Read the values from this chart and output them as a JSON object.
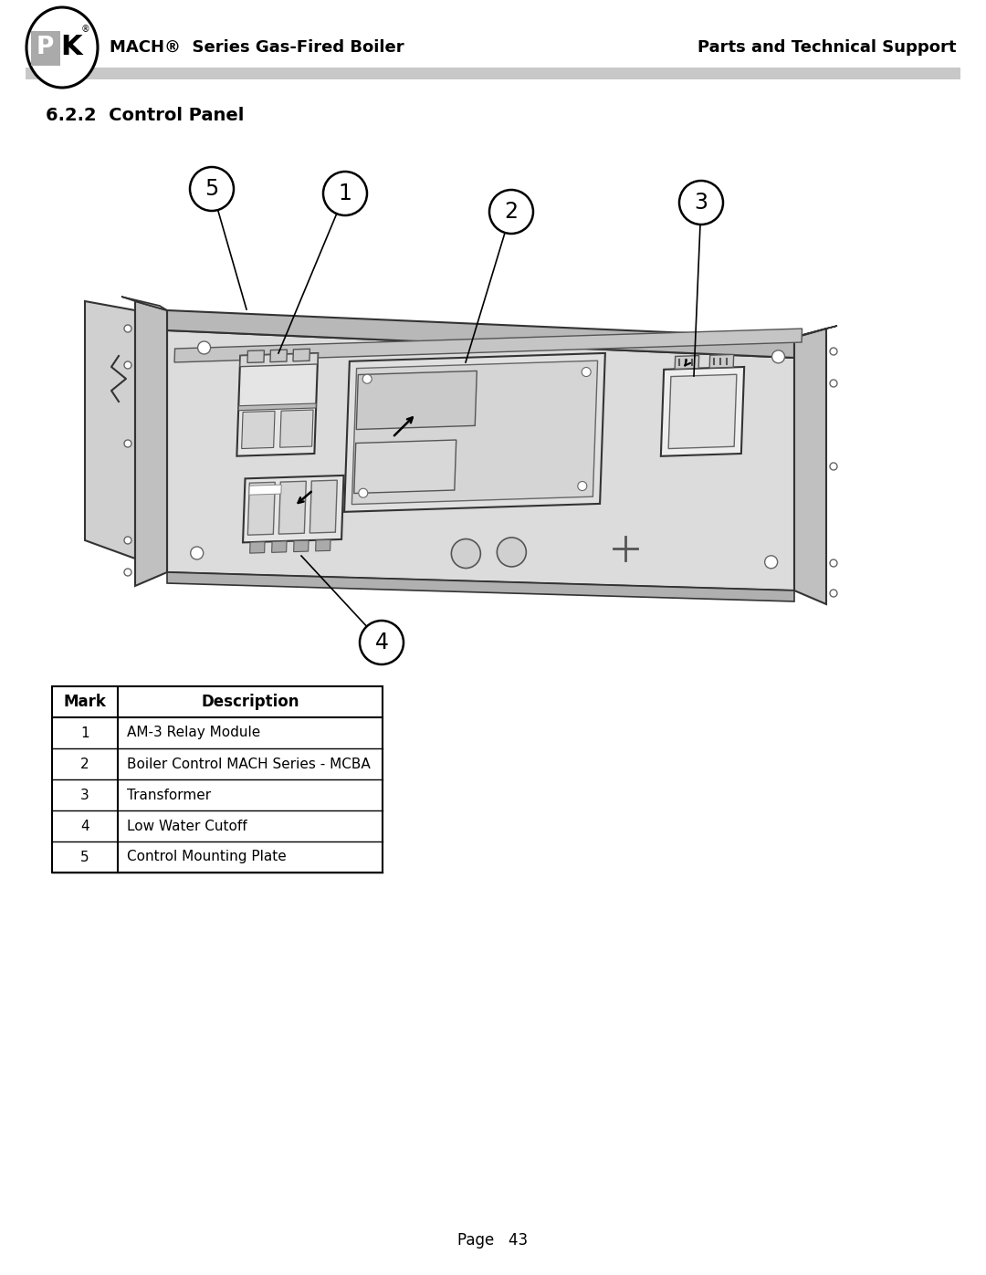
{
  "page_title": "6.2.2  Control Panel",
  "header_left": "MACH®  Series Gas-Fired Boiler",
  "header_right": "Parts and Technical Support",
  "footer": "Page   43",
  "table_headers": [
    "Mark",
    "Description"
  ],
  "table_rows": [
    [
      "1",
      "AM-3 Relay Module"
    ],
    [
      "2",
      "Boiler Control MACH Series - MCBA"
    ],
    [
      "3",
      "Transformer"
    ],
    [
      "4",
      "Low Water Cutoff"
    ],
    [
      "5",
      "Control Mounting Plate"
    ]
  ],
  "bg_color": "#ffffff",
  "header_bar_color": "#c8c8c8",
  "table_border_color": "#000000",
  "text_color": "#000000",
  "panel_face_color": "#dcdcdc",
  "panel_top_color": "#b8b8b8",
  "panel_side_color": "#cccccc",
  "flange_color": "#c0c0c0",
  "component_color": "#e8e8e8"
}
